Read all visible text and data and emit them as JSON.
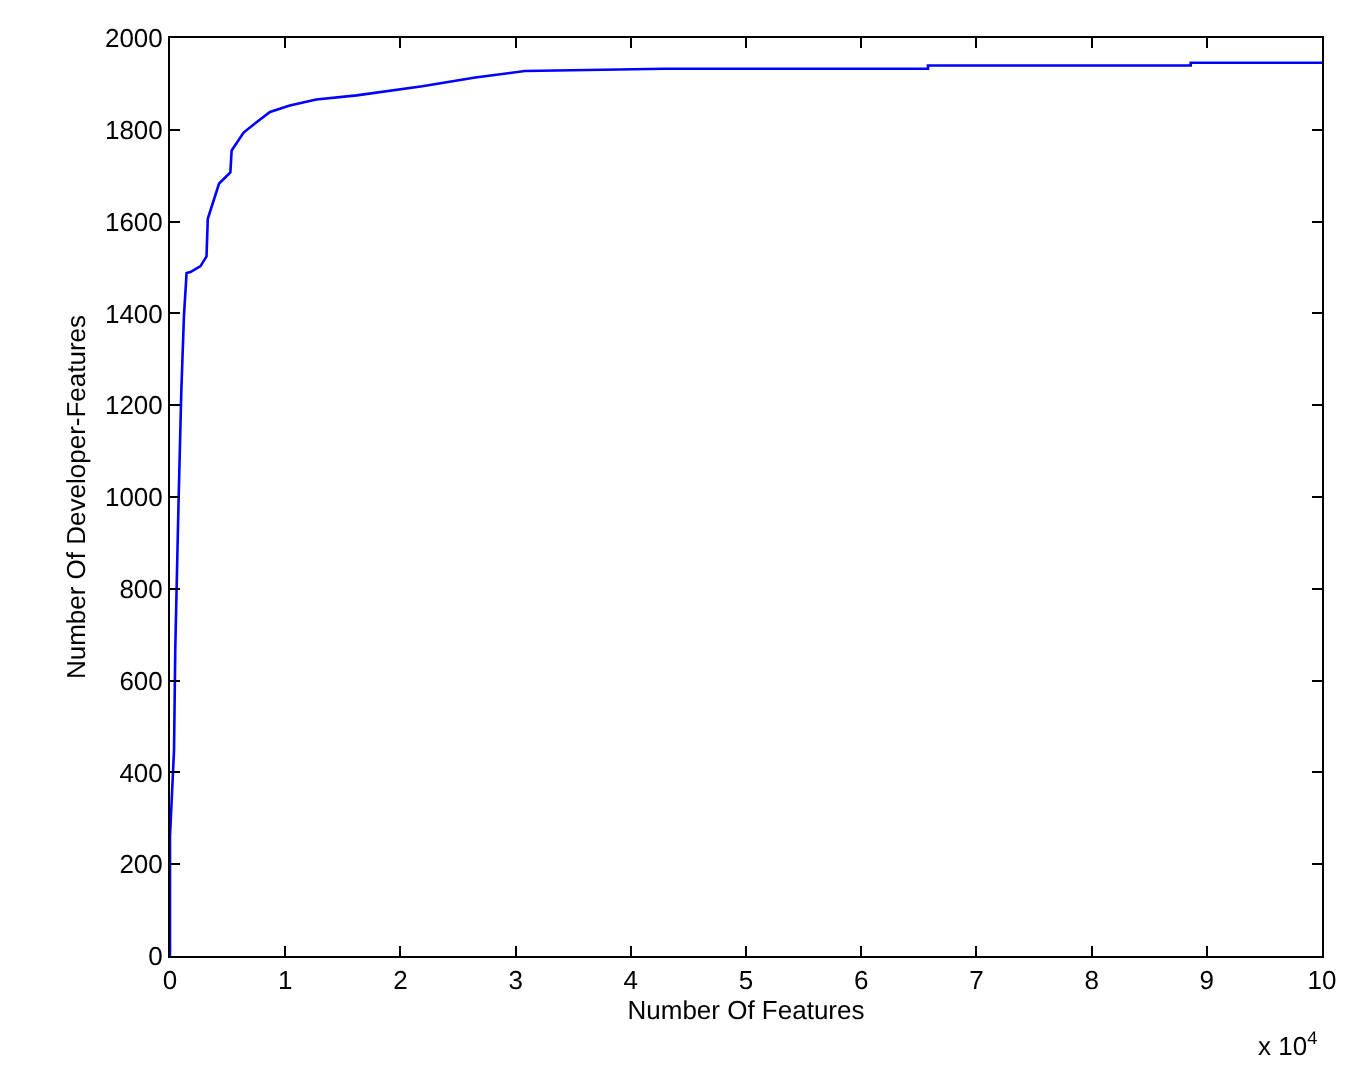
{
  "chart_data": {
    "type": "line",
    "xlabel": "Number Of Features",
    "ylabel": "Number Of Developer-Features",
    "x": [
      0,
      0,
      0.035,
      0.046,
      0.075,
      0.098,
      0.121,
      0.144,
      0.178,
      0.265,
      0.317,
      0.328,
      0.426,
      0.524,
      0.535,
      0.639,
      0.754,
      0.868,
      1.04,
      1.27,
      1.62,
      2.19,
      2.65,
      3.08,
      4.3,
      6.58,
      6.58,
      8.86,
      8.86,
      10
    ],
    "series": [
      {
        "color": "#0000ff",
        "values": [
          0,
          261,
          449,
          673,
          997,
          1228,
          1394,
          1488,
          1490,
          1503,
          1524,
          1606,
          1683,
          1707,
          1755,
          1794,
          1817,
          1839,
          1853,
          1866,
          1875,
          1895,
          1914,
          1928,
          1933,
          1933,
          1940,
          1940,
          1946,
          1946
        ]
      }
    ],
    "xlim": [
      0,
      10
    ],
    "xticks": [
      0,
      1,
      2,
      3,
      4,
      5,
      6,
      7,
      8,
      9,
      10
    ],
    "ylim": [
      0,
      2000
    ],
    "yticks": [
      0,
      200,
      400,
      600,
      800,
      1000,
      1200,
      1400,
      1600,
      1800,
      2000
    ],
    "annotations": [
      "x 10$^{4}$"
    ],
    "marker": "none",
    "line_style": "solid"
  }
}
